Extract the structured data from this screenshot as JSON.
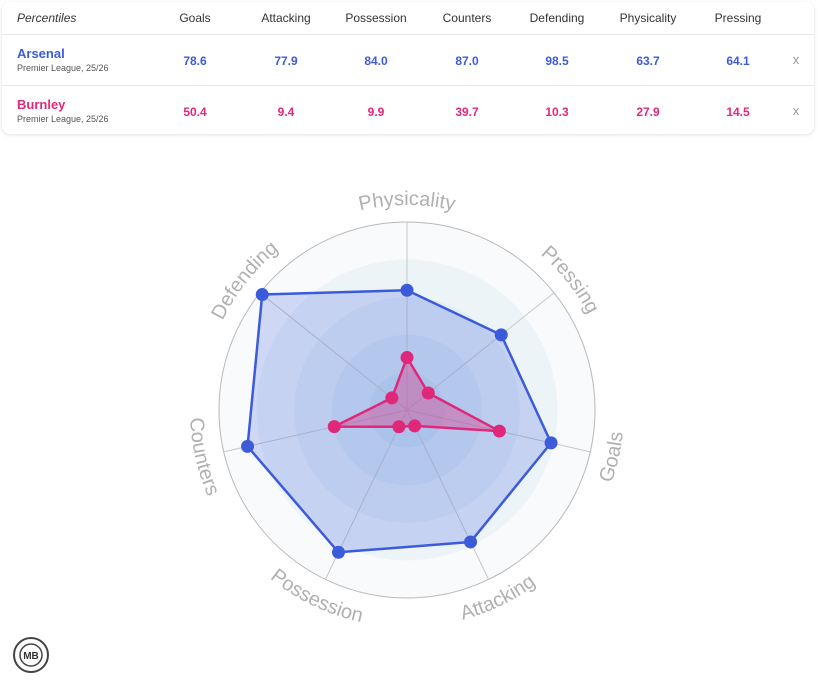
{
  "table": {
    "header_label": "Percentiles",
    "columns": [
      "Goals",
      "Attacking",
      "Possession",
      "Counters",
      "Defending",
      "Physicality",
      "Pressing"
    ],
    "close_label": "x",
    "teams": [
      {
        "name": "Arsenal",
        "league": "Premier League, 25/26",
        "color": "#3b5bdb",
        "values": [
          "78.6",
          "77.9",
          "84.0",
          "87.0",
          "98.5",
          "63.7",
          "64.1"
        ]
      },
      {
        "name": "Burnley",
        "league": "Premier League, 25/26",
        "color": "#e0287a",
        "values": [
          "50.4",
          "9.4",
          "9.9",
          "39.7",
          "10.3",
          "27.9",
          "14.5"
        ]
      }
    ]
  },
  "chart_data": {
    "type": "radar",
    "axes": [
      "Physicality",
      "Pressing",
      "Goals",
      "Attacking",
      "Possession",
      "Counters",
      "Defending"
    ],
    "range": [
      0,
      100
    ],
    "series": [
      {
        "name": "Arsenal",
        "color": "#3b5bdb",
        "values": [
          63.7,
          64.1,
          78.6,
          77.9,
          84.0,
          87.0,
          98.5
        ]
      },
      {
        "name": "Burnley",
        "color": "#e0287a",
        "values": [
          27.9,
          14.5,
          50.4,
          9.4,
          9.9,
          39.7,
          10.3
        ]
      }
    ]
  },
  "logo": {
    "text": "MB"
  }
}
